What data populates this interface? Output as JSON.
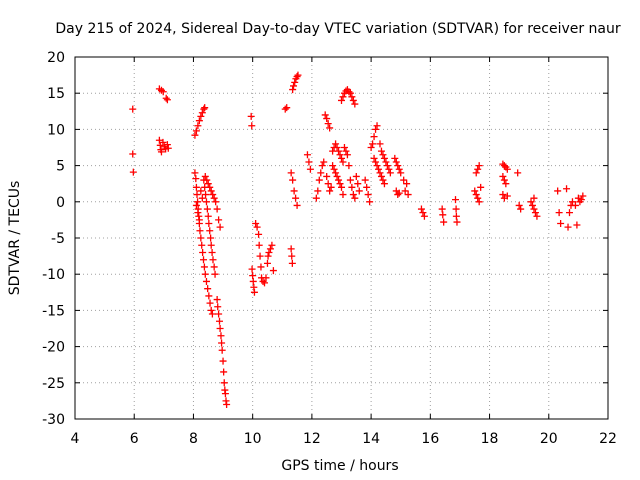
{
  "chart_data": {
    "type": "scatter",
    "title": "Day 215 of 2024, Sidereal Day-to-day VTEC variation (SDTVAR) for receiver naur",
    "xlabel": "GPS time / hours",
    "ylabel": "SDTVAR / TECUs",
    "xlim": [
      4,
      22
    ],
    "ylim": [
      -30,
      20
    ],
    "xticks": [
      "4",
      "6",
      "8",
      "10",
      "12",
      "14",
      "16",
      "18",
      "20",
      "22"
    ],
    "yticks": [
      "20",
      "15",
      "10",
      "5",
      "0",
      "-5",
      "-10",
      "-15",
      "-20",
      "-25",
      "-30"
    ],
    "grid": true,
    "marker": "plus",
    "colors": {
      "series": "#ff0000",
      "axis": "#000000",
      "grid": "#a0a0a0"
    },
    "series": [
      {
        "name": "SDTVAR",
        "points": [
          [
            5.95,
            12.8
          ],
          [
            5.95,
            6.6
          ],
          [
            5.97,
            4.1
          ],
          [
            6.85,
            15.6
          ],
          [
            6.92,
            15.4
          ],
          [
            6.98,
            15.2
          ],
          [
            7.08,
            14.3
          ],
          [
            7.12,
            14.1
          ],
          [
            6.85,
            8.5
          ],
          [
            6.88,
            7.8
          ],
          [
            6.9,
            7.2
          ],
          [
            6.92,
            6.9
          ],
          [
            6.97,
            8.2
          ],
          [
            7.02,
            7.6
          ],
          [
            7.06,
            7.3
          ],
          [
            7.12,
            7.9
          ],
          [
            7.15,
            7.4
          ],
          [
            8.05,
            9.2
          ],
          [
            8.1,
            9.8
          ],
          [
            8.15,
            10.5
          ],
          [
            8.2,
            11.2
          ],
          [
            8.25,
            11.8
          ],
          [
            8.3,
            12.3
          ],
          [
            8.35,
            12.8
          ],
          [
            8.38,
            13.0
          ],
          [
            8.05,
            4.0
          ],
          [
            8.08,
            3.2
          ],
          [
            8.1,
            2.0
          ],
          [
            8.12,
            1.0
          ],
          [
            8.14,
            0.0
          ],
          [
            8.16,
            -1.0
          ],
          [
            8.18,
            -2.0
          ],
          [
            8.2,
            -3.0
          ],
          [
            8.22,
            -4.0
          ],
          [
            8.25,
            -5.0
          ],
          [
            8.28,
            -6.0
          ],
          [
            8.31,
            -7.0
          ],
          [
            8.34,
            -8.0
          ],
          [
            8.37,
            -9.0
          ],
          [
            8.4,
            -10.0
          ],
          [
            8.44,
            -11.0
          ],
          [
            8.48,
            -12.0
          ],
          [
            8.52,
            -13.0
          ],
          [
            8.56,
            -14.0
          ],
          [
            8.6,
            -15.0
          ],
          [
            8.64,
            -15.5
          ],
          [
            8.35,
            3.0
          ],
          [
            8.38,
            2.0
          ],
          [
            8.41,
            1.0
          ],
          [
            8.44,
            0.0
          ],
          [
            8.47,
            -1.0
          ],
          [
            8.5,
            -2.0
          ],
          [
            8.52,
            -3.0
          ],
          [
            8.55,
            -4.0
          ],
          [
            8.58,
            -5.0
          ],
          [
            8.6,
            -6.0
          ],
          [
            8.63,
            -7.0
          ],
          [
            8.66,
            -8.0
          ],
          [
            8.7,
            -9.0
          ],
          [
            8.73,
            -10.0
          ],
          [
            8.4,
            3.5
          ],
          [
            8.45,
            3.0
          ],
          [
            8.5,
            2.5
          ],
          [
            8.55,
            2.0
          ],
          [
            8.6,
            1.5
          ],
          [
            8.65,
            1.0
          ],
          [
            8.7,
            0.5
          ],
          [
            8.75,
            0.0
          ],
          [
            8.8,
            -1.0
          ],
          [
            8.85,
            -2.5
          ],
          [
            8.9,
            -3.5
          ],
          [
            8.1,
            -0.5
          ],
          [
            8.15,
            -1.5
          ],
          [
            8.2,
            -2.5
          ],
          [
            8.25,
            1.5
          ],
          [
            8.3,
            0.5
          ],
          [
            8.8,
            -13.5
          ],
          [
            8.82,
            -14.5
          ],
          [
            8.85,
            -15.5
          ],
          [
            8.88,
            -16.5
          ],
          [
            8.9,
            -17.5
          ],
          [
            8.93,
            -18.5
          ],
          [
            8.95,
            -19.5
          ],
          [
            8.97,
            -20.5
          ],
          [
            9.0,
            -22.0
          ],
          [
            9.02,
            -23.5
          ],
          [
            9.04,
            -25.0
          ],
          [
            9.06,
            -26.0
          ],
          [
            9.08,
            -26.5
          ],
          [
            9.1,
            -27.5
          ],
          [
            9.12,
            -28.0
          ],
          [
            9.95,
            11.8
          ],
          [
            9.97,
            10.5
          ],
          [
            9.98,
            -9.3
          ],
          [
            10.0,
            -10.2
          ],
          [
            10.02,
            -11.0
          ],
          [
            10.04,
            -11.8
          ],
          [
            10.06,
            -12.5
          ],
          [
            10.1,
            -3.0
          ],
          [
            10.15,
            -3.5
          ],
          [
            10.2,
            -4.5
          ],
          [
            10.22,
            -6.0
          ],
          [
            10.25,
            -7.5
          ],
          [
            10.28,
            -9.0
          ],
          [
            10.3,
            -10.5
          ],
          [
            10.35,
            -11.0
          ],
          [
            10.4,
            -11.2
          ],
          [
            10.45,
            -10.5
          ],
          [
            10.5,
            -8.5
          ],
          [
            10.52,
            -7.5
          ],
          [
            10.55,
            -7.0
          ],
          [
            10.6,
            -6.5
          ],
          [
            10.65,
            -6.0
          ],
          [
            10.7,
            -9.5
          ],
          [
            11.1,
            12.8
          ],
          [
            11.15,
            13.0
          ],
          [
            11.3,
            -6.5
          ],
          [
            11.32,
            -7.5
          ],
          [
            11.34,
            -8.5
          ],
          [
            11.3,
            4.0
          ],
          [
            11.35,
            3.0
          ],
          [
            11.4,
            1.5
          ],
          [
            11.45,
            0.5
          ],
          [
            11.5,
            -0.5
          ],
          [
            11.35,
            15.5
          ],
          [
            11.38,
            16.0
          ],
          [
            11.42,
            16.5
          ],
          [
            11.46,
            17.0
          ],
          [
            11.5,
            17.3
          ],
          [
            11.53,
            17.5
          ],
          [
            11.85,
            6.5
          ],
          [
            11.9,
            5.5
          ],
          [
            11.95,
            4.5
          ],
          [
            12.15,
            0.5
          ],
          [
            12.2,
            1.5
          ],
          [
            12.25,
            3.0
          ],
          [
            12.3,
            4.0
          ],
          [
            12.35,
            5.0
          ],
          [
            12.4,
            5.5
          ],
          [
            12.45,
            12.0
          ],
          [
            12.5,
            11.5
          ],
          [
            12.55,
            10.8
          ],
          [
            12.6,
            10.2
          ],
          [
            12.5,
            3.5
          ],
          [
            12.55,
            2.5
          ],
          [
            12.6,
            1.5
          ],
          [
            12.65,
            2.0
          ],
          [
            12.7,
            7.0
          ],
          [
            12.75,
            7.5
          ],
          [
            12.8,
            8.0
          ],
          [
            12.85,
            7.5
          ],
          [
            12.9,
            7.0
          ],
          [
            12.95,
            6.5
          ],
          [
            13.0,
            6.0
          ],
          [
            13.05,
            5.5
          ],
          [
            12.7,
            5.0
          ],
          [
            12.75,
            4.5
          ],
          [
            12.8,
            4.0
          ],
          [
            12.85,
            3.5
          ],
          [
            12.9,
            3.0
          ],
          [
            12.95,
            2.5
          ],
          [
            13.0,
            2.0
          ],
          [
            13.05,
            1.0
          ],
          [
            13.0,
            14.0
          ],
          [
            13.05,
            14.5
          ],
          [
            13.1,
            15.0
          ],
          [
            13.15,
            15.3
          ],
          [
            13.2,
            15.5
          ],
          [
            13.25,
            15.2
          ],
          [
            13.3,
            15.0
          ],
          [
            13.35,
            14.5
          ],
          [
            13.4,
            14.0
          ],
          [
            13.45,
            13.5
          ],
          [
            13.1,
            7.5
          ],
          [
            13.15,
            7.0
          ],
          [
            13.2,
            6.5
          ],
          [
            13.25,
            5.0
          ],
          [
            13.3,
            3.0
          ],
          [
            13.35,
            2.0
          ],
          [
            13.4,
            1.0
          ],
          [
            13.45,
            0.5
          ],
          [
            13.5,
            3.5
          ],
          [
            13.55,
            2.5
          ],
          [
            13.6,
            1.5
          ],
          [
            13.8,
            3.0
          ],
          [
            13.85,
            2.0
          ],
          [
            13.9,
            1.0
          ],
          [
            13.95,
            0.0
          ],
          [
            14.0,
            7.5
          ],
          [
            14.05,
            8.0
          ],
          [
            14.1,
            9.0
          ],
          [
            14.15,
            10.0
          ],
          [
            14.2,
            10.5
          ],
          [
            14.1,
            6.0
          ],
          [
            14.15,
            5.5
          ],
          [
            14.2,
            5.0
          ],
          [
            14.25,
            4.5
          ],
          [
            14.3,
            4.0
          ],
          [
            14.35,
            3.5
          ],
          [
            14.4,
            3.0
          ],
          [
            14.45,
            2.5
          ],
          [
            14.3,
            8.0
          ],
          [
            14.35,
            7.0
          ],
          [
            14.4,
            6.5
          ],
          [
            14.45,
            6.0
          ],
          [
            14.5,
            5.5
          ],
          [
            14.55,
            5.0
          ],
          [
            14.6,
            4.5
          ],
          [
            14.65,
            4.0
          ],
          [
            14.8,
            6.0
          ],
          [
            14.85,
            5.5
          ],
          [
            14.9,
            5.0
          ],
          [
            14.95,
            4.5
          ],
          [
            15.0,
            4.0
          ],
          [
            14.85,
            1.5
          ],
          [
            14.9,
            1.0
          ],
          [
            14.95,
            1.2
          ],
          [
            15.1,
            3.0
          ],
          [
            15.2,
            2.5
          ],
          [
            15.15,
            1.5
          ],
          [
            15.25,
            1.0
          ],
          [
            15.7,
            -1.0
          ],
          [
            15.75,
            -1.5
          ],
          [
            15.8,
            -2.0
          ],
          [
            16.4,
            -1.0
          ],
          [
            16.42,
            -1.8
          ],
          [
            16.45,
            -2.8
          ],
          [
            16.85,
            0.3
          ],
          [
            16.87,
            -1.0
          ],
          [
            16.88,
            -2.0
          ],
          [
            16.9,
            -2.8
          ],
          [
            17.5,
            1.5
          ],
          [
            17.55,
            1.0
          ],
          [
            17.6,
            0.5
          ],
          [
            17.65,
            0.0
          ],
          [
            17.55,
            4.0
          ],
          [
            17.6,
            4.5
          ],
          [
            17.65,
            5.0
          ],
          [
            17.7,
            2.0
          ],
          [
            18.45,
            5.2
          ],
          [
            18.5,
            5.0
          ],
          [
            18.55,
            4.8
          ],
          [
            18.6,
            4.5
          ],
          [
            18.45,
            3.5
          ],
          [
            18.5,
            3.0
          ],
          [
            18.55,
            2.5
          ],
          [
            18.45,
            1.0
          ],
          [
            18.5,
            0.5
          ],
          [
            18.6,
            0.8
          ],
          [
            18.95,
            4.0
          ],
          [
            19.0,
            -0.5
          ],
          [
            19.05,
            -1.0
          ],
          [
            19.4,
            0.0
          ],
          [
            19.45,
            -0.5
          ],
          [
            19.5,
            -1.0
          ],
          [
            19.55,
            -1.5
          ],
          [
            19.6,
            -2.0
          ],
          [
            19.5,
            0.5
          ],
          [
            20.3,
            1.5
          ],
          [
            20.35,
            -1.5
          ],
          [
            20.4,
            -3.0
          ],
          [
            20.65,
            -3.5
          ],
          [
            20.7,
            -1.5
          ],
          [
            20.75,
            -0.5
          ],
          [
            20.8,
            0.0
          ],
          [
            20.9,
            -0.5
          ],
          [
            20.6,
            1.8
          ],
          [
            20.95,
            -3.2
          ],
          [
            21.0,
            0.5
          ],
          [
            21.05,
            0.0
          ],
          [
            21.1,
            0.3
          ],
          [
            21.15,
            0.8
          ]
        ]
      }
    ]
  }
}
